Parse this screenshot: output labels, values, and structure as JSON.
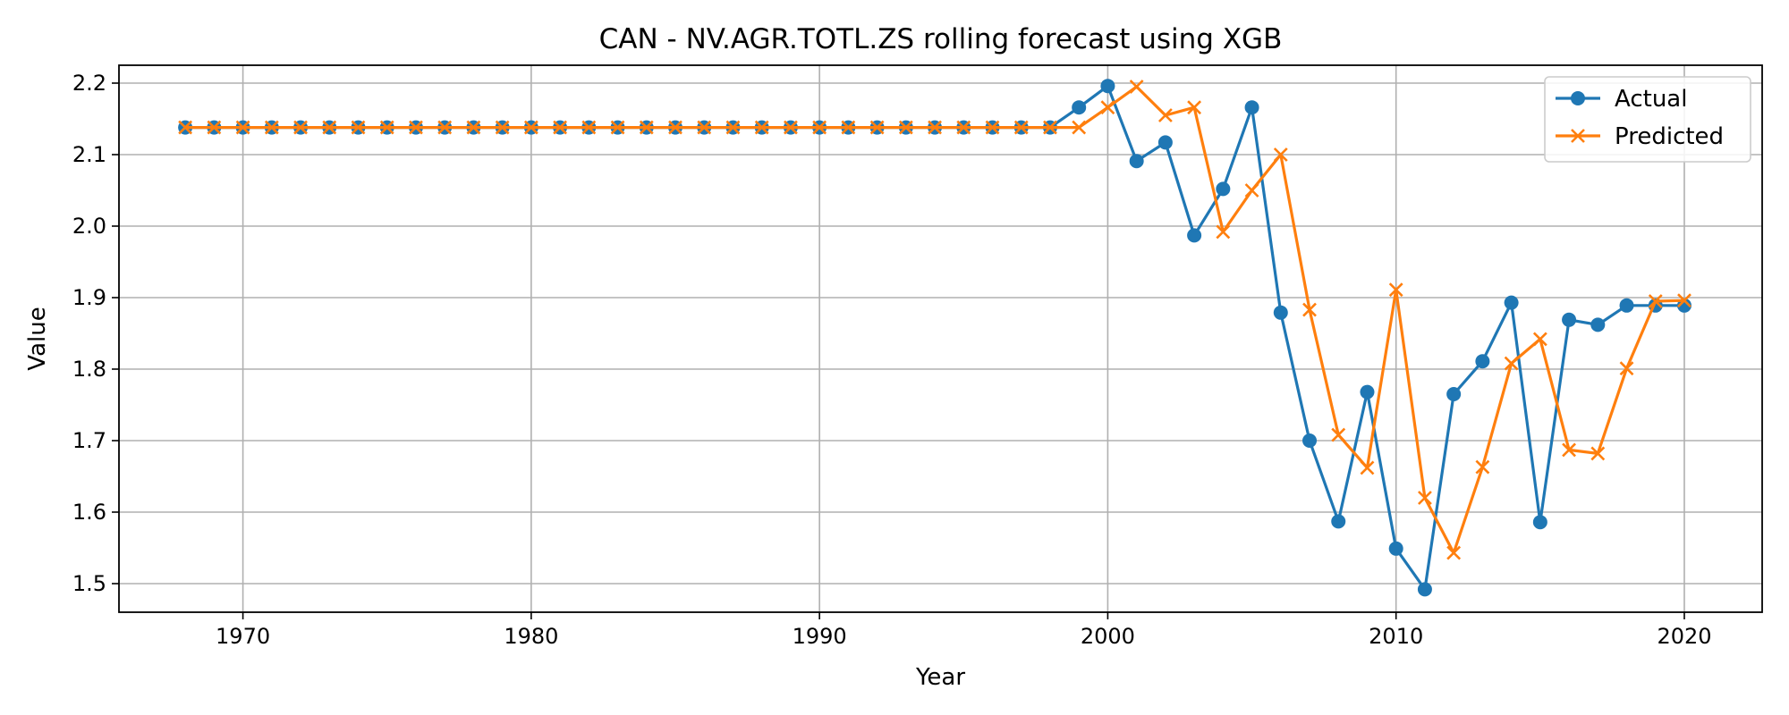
{
  "chart_data": {
    "type": "line",
    "title": "CAN - NV.AGR.TOTL.ZS rolling forecast using XGB",
    "xlabel": "Year",
    "ylabel": "Value",
    "xlim": [
      1965.7,
      2022.7
    ],
    "ylim": [
      1.46,
      2.225
    ],
    "x_ticks": [
      1970,
      1980,
      1990,
      2000,
      2010,
      2020
    ],
    "y_ticks": [
      1.5,
      1.6,
      1.7,
      1.8,
      1.9,
      2.0,
      2.1,
      2.2
    ],
    "grid": true,
    "legend_position": "top-right",
    "x": [
      1968,
      1969,
      1970,
      1971,
      1972,
      1973,
      1974,
      1975,
      1976,
      1977,
      1978,
      1979,
      1980,
      1981,
      1982,
      1983,
      1984,
      1985,
      1986,
      1987,
      1988,
      1989,
      1990,
      1991,
      1992,
      1993,
      1994,
      1995,
      1996,
      1997,
      1998,
      1999,
      2000,
      2001,
      2002,
      2003,
      2004,
      2005,
      2006,
      2007,
      2008,
      2009,
      2010,
      2011,
      2012,
      2013,
      2014,
      2015,
      2016,
      2017,
      2018,
      2019,
      2020
    ],
    "series": [
      {
        "name": "Actual",
        "color": "#1f77b4",
        "marker": "circle",
        "values": [
          2.138,
          2.138,
          2.138,
          2.138,
          2.138,
          2.138,
          2.138,
          2.138,
          2.138,
          2.138,
          2.138,
          2.138,
          2.138,
          2.138,
          2.138,
          2.138,
          2.138,
          2.138,
          2.138,
          2.138,
          2.138,
          2.138,
          2.138,
          2.138,
          2.138,
          2.138,
          2.138,
          2.138,
          2.138,
          2.138,
          2.138,
          2.166,
          2.196,
          2.091,
          2.117,
          1.987,
          2.052,
          2.166,
          1.879,
          1.7,
          1.587,
          1.768,
          1.549,
          1.492,
          1.765,
          1.811,
          1.893,
          1.586,
          1.869,
          1.862,
          1.889,
          1.889,
          1.889
        ]
      },
      {
        "name": "Predicted",
        "color": "#ff7f0e",
        "marker": "x",
        "values": [
          2.138,
          2.138,
          2.138,
          2.138,
          2.138,
          2.138,
          2.138,
          2.138,
          2.138,
          2.138,
          2.138,
          2.138,
          2.138,
          2.138,
          2.138,
          2.138,
          2.138,
          2.138,
          2.138,
          2.138,
          2.138,
          2.138,
          2.138,
          2.138,
          2.138,
          2.138,
          2.138,
          2.138,
          2.138,
          2.138,
          2.138,
          2.138,
          2.166,
          2.195,
          2.155,
          2.166,
          1.992,
          2.05,
          2.1,
          1.883,
          1.708,
          1.662,
          1.911,
          1.62,
          1.543,
          1.663,
          1.808,
          1.842,
          1.687,
          1.682,
          1.801,
          1.895,
          1.896
        ]
      }
    ]
  }
}
